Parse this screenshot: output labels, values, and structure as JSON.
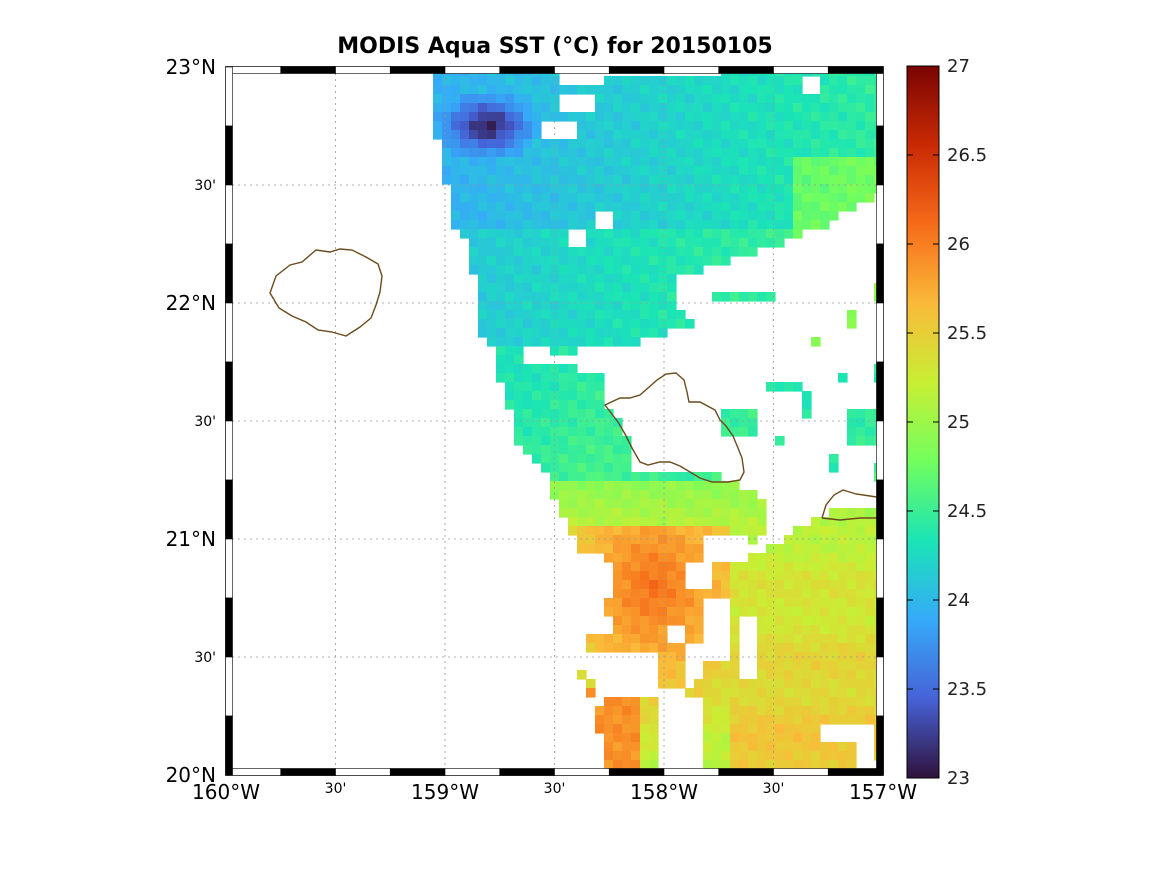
{
  "map": {
    "title": "MODIS Aqua SST (°C) for 20150105",
    "lon_range": [
      -160,
      -157
    ],
    "lat_range": [
      20,
      23
    ],
    "lon_labels": [
      {
        "lon": -160,
        "text": "160°W",
        "major": true
      },
      {
        "lon": -159.5,
        "text": "30'",
        "major": false
      },
      {
        "lon": -159,
        "text": "159°W",
        "major": true
      },
      {
        "lon": -158.5,
        "text": "30'",
        "major": false
      },
      {
        "lon": -158,
        "text": "158°W",
        "major": true
      },
      {
        "lon": -157.5,
        "text": "30'",
        "major": false
      },
      {
        "lon": -157,
        "text": "157°W",
        "major": true
      }
    ],
    "lat_labels": [
      {
        "lat": 23,
        "text": "23°N",
        "major": true
      },
      {
        "lat": 22.5,
        "text": "30'",
        "major": false
      },
      {
        "lat": 22,
        "text": "22°N",
        "major": true
      },
      {
        "lat": 21.5,
        "text": "30'",
        "major": false
      },
      {
        "lat": 21,
        "text": "21°N",
        "major": true
      },
      {
        "lat": 20.5,
        "text": "30'",
        "major": false
      },
      {
        "lat": 20,
        "text": "20°N",
        "major": true
      }
    ],
    "grid": true,
    "colorbar": {
      "min": 23,
      "max": 27,
      "ticks": [
        "23",
        "23.5",
        "24",
        "24.5",
        "25",
        "25.5",
        "26",
        "26.5",
        "27"
      ],
      "colormap": [
        "#30123b",
        "#4662d7",
        "#36aaf9",
        "#1ae4b6",
        "#72fe5e",
        "#c8ef34",
        "#faba39",
        "#f66b19",
        "#ca2a04",
        "#7a0403"
      ]
    },
    "coastline_color": "#6b4a1e"
  },
  "chart_data": {
    "type": "heatmap",
    "title": "MODIS Aqua SST (°C) for 20150105",
    "variable": "SST (°C)",
    "date": "20150105",
    "xlabel": "",
    "ylabel": "",
    "xlim": [
      -160,
      -157
    ],
    "ylim": [
      20,
      23
    ],
    "zlim": [
      23,
      27
    ],
    "approx_regions": [
      {
        "region": "northeast (21.8–23°N, 158.9–157°W)",
        "sst_c": 24.1
      },
      {
        "region": "cold patch near 22.7°N, 158.8°W",
        "sst_c": 23.2
      },
      {
        "region": "central (21.3–21.8°N, 158.6–157.9°W)",
        "sst_c": 24.5
      },
      {
        "region": "warm core south of Oahu (20.6–21°N, 158.3–157.9°W)",
        "sst_c": 26.0
      },
      {
        "region": "southeast (20.1–21°N, 157.7–157°W)",
        "sst_c": 25.3
      }
    ]
  }
}
